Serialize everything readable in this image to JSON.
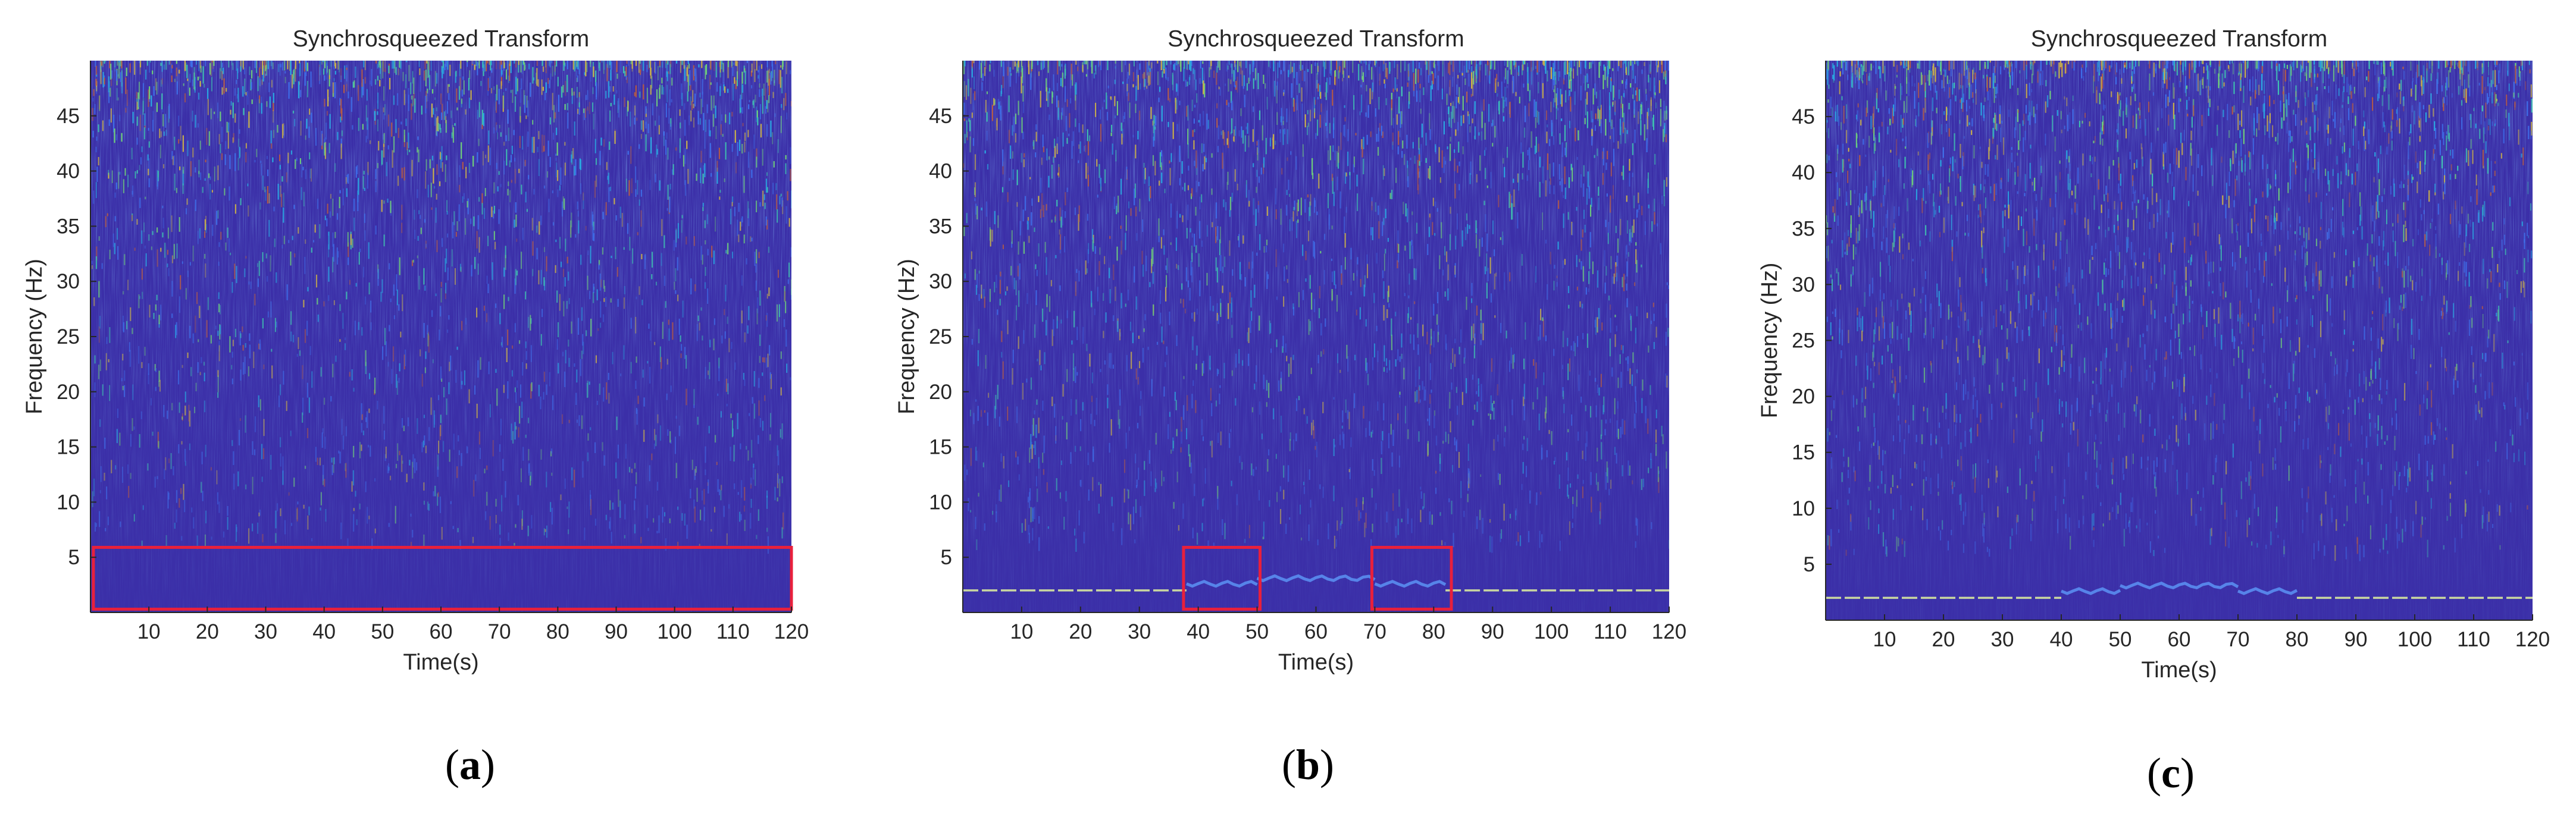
{
  "colors": {
    "background": "#3b2fa8",
    "background_deep": "#2f2a8f",
    "noise_colors": [
      "#3f6ee8",
      "#2aa6e0",
      "#3fbfb0",
      "#6fcf7a",
      "#c9b04a",
      "#b25a48"
    ],
    "ridge": "#d9e9a0",
    "highlight_box": "#e8203c",
    "axis": "#262626"
  },
  "chart_data": [
    {
      "id": "a",
      "type": "heatmap",
      "title": "Synchrosqueezed Transform",
      "xlabel": "Time(s)",
      "ylabel": "Frequency (Hz)",
      "xlim": [
        0,
        120
      ],
      "ylim": [
        0,
        50
      ],
      "xticks": [
        10,
        20,
        30,
        40,
        50,
        60,
        70,
        80,
        90,
        100,
        110,
        120
      ],
      "yticks": [
        5,
        10,
        15,
        20,
        25,
        30,
        35,
        40,
        45
      ],
      "ridges": [],
      "highlight_boxes": [
        {
          "x": [
            0.5,
            120
          ],
          "y": [
            0.3,
            5.9
          ]
        }
      ],
      "caption": {
        "open": "(",
        "letter": "a",
        "close": ")"
      }
    },
    {
      "id": "b",
      "type": "heatmap",
      "title": "Synchrosqueezed Transform",
      "xlabel": "Time(s)",
      "ylabel": "Frequency (Hz)",
      "xlim": [
        0,
        120
      ],
      "ylim": [
        0,
        50
      ],
      "xticks": [
        10,
        20,
        30,
        40,
        50,
        60,
        70,
        80,
        90,
        100,
        110,
        120
      ],
      "yticks": [
        5,
        10,
        15,
        20,
        25,
        30,
        35,
        40,
        45
      ],
      "ridges": [
        {
          "x": [
            0,
            38
          ],
          "freq": 2.0
        },
        {
          "x": [
            38,
            50
          ],
          "freq": 2.6
        },
        {
          "x": [
            50,
            70
          ],
          "freq": 3.1
        },
        {
          "x": [
            70,
            82
          ],
          "freq": 2.6
        },
        {
          "x": [
            82,
            120
          ],
          "freq": 2.0
        }
      ],
      "highlight_boxes": [
        {
          "x": [
            37.5,
            50.5
          ],
          "y": [
            0.3,
            5.9
          ]
        },
        {
          "x": [
            69.5,
            83
          ],
          "y": [
            0.3,
            5.9
          ]
        }
      ],
      "caption": {
        "open": "(",
        "letter": "b",
        "close": ")"
      }
    },
    {
      "id": "c",
      "type": "heatmap",
      "title": "Synchrosqueezed Transform",
      "xlabel": "Time(s)",
      "ylabel": "Frequency (Hz)",
      "xlim": [
        0,
        120
      ],
      "ylim": [
        0,
        50
      ],
      "xticks": [
        10,
        20,
        30,
        40,
        50,
        60,
        70,
        80,
        90,
        100,
        110,
        120
      ],
      "yticks": [
        5,
        10,
        15,
        20,
        25,
        30,
        35,
        40,
        45
      ],
      "ridges": [
        {
          "x": [
            0,
            40
          ],
          "freq": 2.0
        },
        {
          "x": [
            40,
            50
          ],
          "freq": 2.6
        },
        {
          "x": [
            50,
            70
          ],
          "freq": 3.1
        },
        {
          "x": [
            70,
            80
          ],
          "freq": 2.6
        },
        {
          "x": [
            80,
            120
          ],
          "freq": 2.0
        }
      ],
      "highlight_boxes": [],
      "caption": {
        "open": "(",
        "letter": "c",
        "close": ")"
      }
    }
  ]
}
